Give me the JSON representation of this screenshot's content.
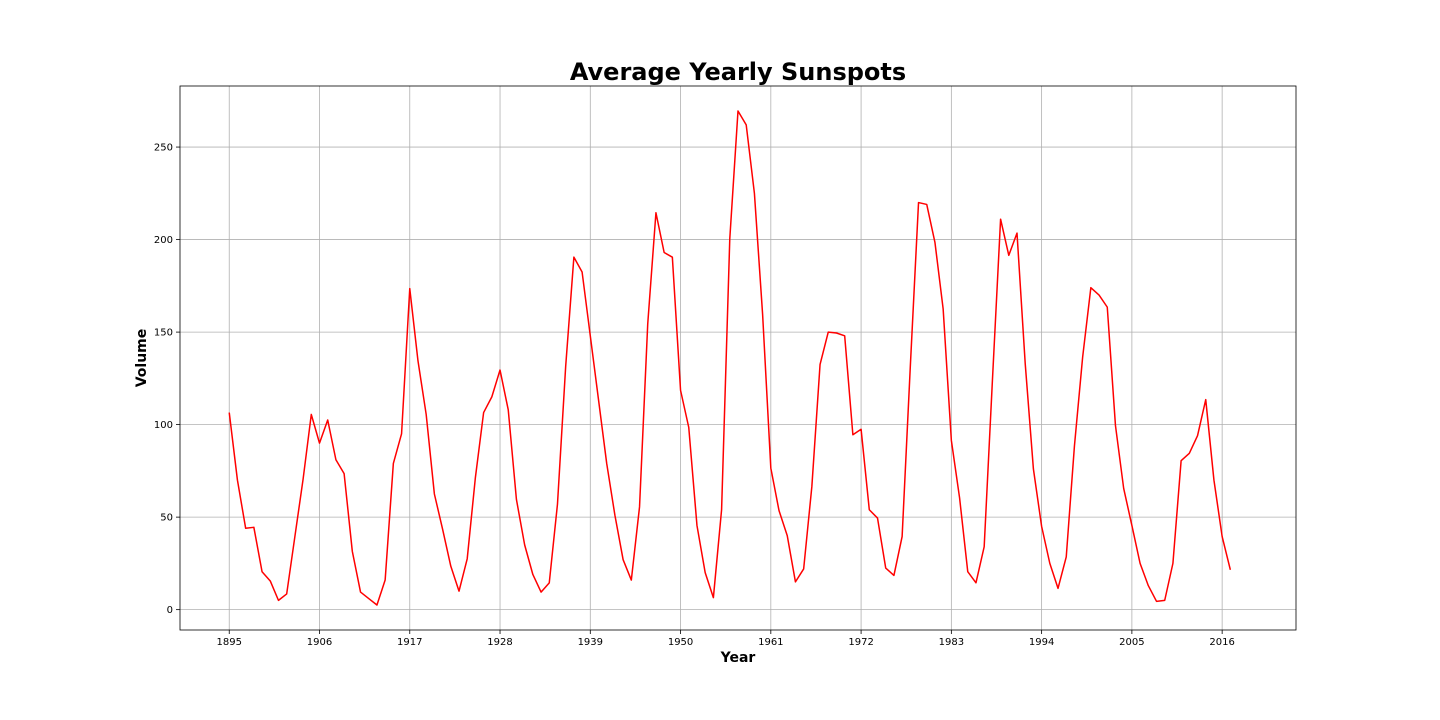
{
  "chart_data": {
    "type": "line",
    "title": "Average Yearly Sunspots",
    "xlabel": "Year",
    "ylabel": "Volume",
    "xlim": [
      1889,
      2025
    ],
    "ylim": [
      -11,
      283
    ],
    "xticks": [
      1895,
      1906,
      1917,
      1928,
      1939,
      1950,
      1961,
      1972,
      1983,
      1994,
      2005,
      2016
    ],
    "yticks": [
      0,
      50,
      100,
      150,
      200,
      250
    ],
    "grid": true,
    "line_color": "#ff0000",
    "x": [
      1895,
      1896,
      1897,
      1898,
      1899,
      1900,
      1901,
      1902,
      1903,
      1904,
      1905,
      1906,
      1907,
      1908,
      1909,
      1910,
      1911,
      1912,
      1913,
      1914,
      1915,
      1916,
      1917,
      1918,
      1919,
      1920,
      1921,
      1922,
      1923,
      1924,
      1925,
      1926,
      1927,
      1928,
      1929,
      1930,
      1931,
      1932,
      1933,
      1934,
      1935,
      1936,
      1937,
      1938,
      1939,
      1940,
      1941,
      1942,
      1943,
      1944,
      1945,
      1946,
      1947,
      1948,
      1949,
      1950,
      1951,
      1952,
      1953,
      1954,
      1955,
      1956,
      1957,
      1958,
      1959,
      1960,
      1961,
      1962,
      1963,
      1964,
      1965,
      1966,
      1967,
      1968,
      1969,
      1970,
      1971,
      1972,
      1973,
      1974,
      1975,
      1976,
      1977,
      1978,
      1979,
      1980,
      1981,
      1982,
      1983,
      1984,
      1985,
      1986,
      1987,
      1988,
      1989,
      1990,
      1991,
      1992,
      1993,
      1994,
      1995,
      1996,
      1997,
      1998,
      1999,
      2000,
      2001,
      2002,
      2003,
      2004,
      2005,
      2006,
      2007,
      2008,
      2009,
      2010,
      2011,
      2012,
      2013,
      2014,
      2015,
      2016,
      2017
    ],
    "y": [
      106.5,
      70.0,
      44.0,
      44.5,
      20.5,
      15.5,
      5.0,
      8.5,
      39.5,
      70.5,
      105.5,
      90.0,
      102.5,
      81.0,
      73.5,
      31.5,
      9.5,
      6.0,
      2.5,
      16.0,
      79.0,
      95.0,
      173.5,
      134.5,
      105.5,
      62.5,
      43.5,
      23.5,
      10.0,
      27.5,
      71.5,
      106.5,
      115.0,
      129.5,
      108.0,
      59.5,
      35.0,
      19.0,
      9.5,
      14.5,
      57.0,
      131.5,
      190.5,
      182.5,
      148.0,
      113.5,
      79.0,
      51.0,
      27.0,
      16.0,
      55.5,
      154.5,
      214.5,
      193.0,
      190.5,
      118.5,
      98.5,
      45.5,
      20.0,
      6.5,
      54.0,
      200.5,
      269.5,
      262.0,
      225.0,
      159.5,
      76.5,
      53.5,
      40.0,
      15.0,
      22.0,
      66.5,
      132.5,
      150.0,
      149.5,
      148.0,
      94.5,
      97.5,
      54.0,
      49.5,
      22.5,
      18.5,
      39.5,
      131.5,
      220.0,
      219.0,
      198.5,
      162.5,
      91.5,
      60.5,
      20.5,
      14.5,
      34.0,
      123.5,
      211.0,
      191.5,
      203.5,
      133.0,
      76.0,
      45.0,
      25.0,
      11.5,
      28.5,
      88.5,
      136.5,
      174.0,
      170.0,
      163.5,
      99.5,
      65.5,
      45.5,
      25.0,
      13.0,
      4.5,
      5.0,
      25.0,
      80.5,
      84.5,
      94.0,
      113.5,
      70.0,
      39.5,
      21.5
    ]
  }
}
